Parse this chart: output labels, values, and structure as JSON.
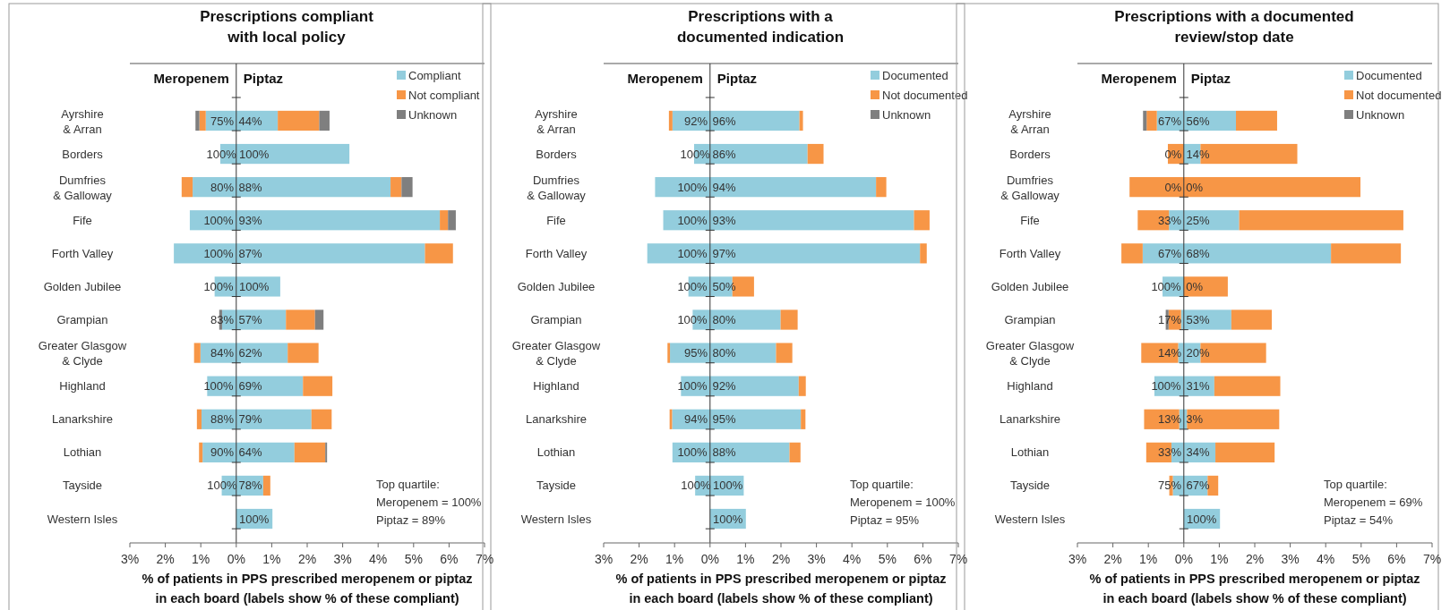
{
  "chart_data": [
    {
      "type": "bar",
      "orientation": "horizontal",
      "stacked": true,
      "title": "Prescriptions compliant\nwith local policy",
      "xlabel": "% of patients in PPS prescribed meropenem or piptaz\nin each board (labels show % of these compliant)",
      "legend": "top right",
      "categories": [
        "Ayrshire\n& Arran",
        "Borders",
        "Dumfries\n& Galloway",
        "Fife",
        "Forth Valley",
        "Golden Jubilee",
        "Grampian",
        "Greater Glasgow\n& Clyde",
        "Highland",
        "Lanarkshire",
        "Lothian",
        "Tayside",
        "Western Isles"
      ],
      "xlim": [
        -3,
        7
      ],
      "xticks": [
        {
          "value": -3,
          "label": "3%"
        },
        {
          "value": -2,
          "label": "2%"
        },
        {
          "value": -1,
          "label": "1%"
        },
        {
          "value": 0,
          "label": "0%"
        },
        {
          "value": 1,
          "label": "1%"
        },
        {
          "value": 2,
          "label": "2%"
        },
        {
          "value": 3,
          "label": "3%"
        },
        {
          "value": 4,
          "label": "4%"
        },
        {
          "value": 5,
          "label": "5%"
        },
        {
          "value": 6,
          "label": "6%"
        },
        {
          "value": 7,
          "label": "7%"
        }
      ],
      "annotations": [
        "Meropenem",
        "Piptaz",
        "Top quartile:\nMeropenem = 100%\nPiptaz = 89%",
        {
          "text": "75%",
          "x": -0.4,
          "y": "Ayrshire\n& Arran"
        },
        {
          "text": "100%",
          "x": -0.42,
          "y": "Borders"
        },
        {
          "text": "80%",
          "x": -0.4,
          "y": "Dumfries\n& Galloway"
        },
        {
          "text": "100%",
          "x": -0.5,
          "y": "Fife"
        },
        {
          "text": "100%",
          "x": -0.5,
          "y": "Forth Valley"
        },
        {
          "text": "100%",
          "x": -0.5,
          "y": "Golden Jubilee"
        },
        {
          "text": "83%",
          "x": -0.4,
          "y": "Grampian"
        },
        {
          "text": "84%",
          "x": -0.4,
          "y": "Greater Glasgow\n& Clyde"
        },
        {
          "text": "100%",
          "x": -0.5,
          "y": "Highland"
        },
        {
          "text": "88%",
          "x": -0.4,
          "y": "Lanarkshire"
        },
        {
          "text": "90%",
          "x": -0.4,
          "y": "Lothian"
        },
        {
          "text": "100%",
          "x": -0.4,
          "y": "Tayside"
        },
        {
          "text": "44%",
          "x": 0.4,
          "y": "Ayrshire\n& Arran"
        },
        {
          "text": "100%",
          "x": 0.5,
          "y": "Borders"
        },
        {
          "text": "88%",
          "x": 0.4,
          "y": "Dumfries\n& Galloway"
        },
        {
          "text": "93%",
          "x": 0.4,
          "y": "Fife"
        },
        {
          "text": "87%",
          "x": 0.4,
          "y": "Forth Valley"
        },
        {
          "text": "100%",
          "x": 0.5,
          "y": "Golden Jubilee"
        },
        {
          "text": "57%",
          "x": 0.4,
          "y": "Grampian"
        },
        {
          "text": "62%",
          "x": 0.4,
          "y": "Greater Glasgow\n& Clyde"
        },
        {
          "text": "69%",
          "x": 0.4,
          "y": "Highland"
        },
        {
          "text": "79%",
          "x": 0.4,
          "y": "Lanarkshire"
        },
        {
          "text": "64%",
          "x": 0.4,
          "y": "Lothian"
        },
        {
          "text": "78%",
          "x": 0.4,
          "y": "Tayside"
        },
        {
          "text": "100%",
          "x": 0.5,
          "y": "Western Isles"
        }
      ],
      "series": [
        {
          "color": "#93cddd",
          "values": [
            -0.86,
            -0.45,
            -1.23,
            -1.31,
            -1.76,
            -0.61,
            -0.4,
            -1.01,
            -0.82,
            -0.98,
            -0.95,
            -0.41,
            null
          ]
        },
        {
          "color": "#f79646",
          "values": [
            -0.18,
            null,
            -0.31,
            null,
            null,
            null,
            null,
            -0.18,
            null,
            -0.13,
            -0.1,
            null,
            null
          ]
        },
        {
          "color": "#7f7f7f",
          "values": [
            -0.11,
            null,
            null,
            null,
            null,
            null,
            -0.08,
            null,
            null,
            null,
            null,
            null,
            null
          ]
        },
        {
          "name": "Compliant",
          "color": "#93cddd",
          "values": [
            1.17,
            3.19,
            4.35,
            5.74,
            5.32,
            1.24,
            1.4,
            1.45,
            1.88,
            2.12,
            1.64,
            0.76,
            1.02
          ]
        },
        {
          "name": "Not compliant",
          "color": "#f79646",
          "values": [
            1.17,
            null,
            0.31,
            0.23,
            0.79,
            null,
            0.82,
            0.87,
            0.83,
            0.57,
            0.87,
            0.2,
            null
          ]
        },
        {
          "name": "Unknown",
          "color": "#7f7f7f",
          "values": [
            0.29,
            null,
            0.31,
            0.22,
            null,
            null,
            0.24,
            null,
            null,
            null,
            0.05,
            null,
            null
          ]
        }
      ]
    },
    {
      "type": "bar",
      "orientation": "horizontal",
      "stacked": true,
      "title": "Prescriptions with a\ndocumented indication",
      "xlabel": "% of patients in PPS prescribed meropenem or piptaz\nin each board (labels show % of these compliant)",
      "legend": "top right",
      "categories": [
        "Ayrshire\n& Arran",
        "Borders",
        "Dumfries\n& Galloway",
        "Fife",
        "Forth Valley",
        "Golden Jubilee",
        "Grampian",
        "Greater Glasgow\n& Clyde",
        "Highland",
        "Lanarkshire",
        "Lothian",
        "Tayside",
        "Western Isles"
      ],
      "xlim": [
        -3,
        7
      ],
      "xticks": [
        {
          "value": -3,
          "label": "3%"
        },
        {
          "value": -2,
          "label": "2%"
        },
        {
          "value": -1,
          "label": "1%"
        },
        {
          "value": 0,
          "label": "0%"
        },
        {
          "value": 1,
          "label": "1%"
        },
        {
          "value": 2,
          "label": "2%"
        },
        {
          "value": 3,
          "label": "3%"
        },
        {
          "value": 4,
          "label": "4%"
        },
        {
          "value": 5,
          "label": "5%"
        },
        {
          "value": 6,
          "label": "6%"
        },
        {
          "value": 7,
          "label": "7%"
        }
      ],
      "annotations": [
        "Meropenem",
        "Piptaz",
        "Top quartile:\nMeropenem = 100%\nPiptaz = 95%",
        {
          "text": "92%",
          "x": -0.4,
          "y": "Ayrshire\n& Arran"
        },
        {
          "text": "100%",
          "x": -0.42,
          "y": "Borders"
        },
        {
          "text": "100%",
          "x": -0.5,
          "y": "Dumfries\n& Galloway"
        },
        {
          "text": "100%",
          "x": -0.5,
          "y": "Fife"
        },
        {
          "text": "100%",
          "x": -0.5,
          "y": "Forth Valley"
        },
        {
          "text": "100%",
          "x": -0.5,
          "y": "Golden Jubilee"
        },
        {
          "text": "100%",
          "x": -0.5,
          "y": "Grampian"
        },
        {
          "text": "95%",
          "x": -0.4,
          "y": "Greater Glasgow\n& Clyde"
        },
        {
          "text": "100%",
          "x": -0.5,
          "y": "Highland"
        },
        {
          "text": "94%",
          "x": -0.4,
          "y": "Lanarkshire"
        },
        {
          "text": "100%",
          "x": -0.5,
          "y": "Lothian"
        },
        {
          "text": "100%",
          "x": -0.4,
          "y": "Tayside"
        },
        {
          "text": "96%",
          "x": 0.4,
          "y": "Ayrshire\n& Arran"
        },
        {
          "text": "86%",
          "x": 0.4,
          "y": "Borders"
        },
        {
          "text": "94%",
          "x": 0.4,
          "y": "Dumfries\n& Galloway"
        },
        {
          "text": "93%",
          "x": 0.4,
          "y": "Fife"
        },
        {
          "text": "97%",
          "x": 0.4,
          "y": "Forth Valley"
        },
        {
          "text": "50%",
          "x": 0.4,
          "y": "Golden Jubilee"
        },
        {
          "text": "80%",
          "x": 0.4,
          "y": "Grampian"
        },
        {
          "text": "80%",
          "x": 0.4,
          "y": "Greater Glasgow\n& Clyde"
        },
        {
          "text": "92%",
          "x": 0.4,
          "y": "Highland"
        },
        {
          "text": "95%",
          "x": 0.4,
          "y": "Lanarkshire"
        },
        {
          "text": "88%",
          "x": 0.4,
          "y": "Lothian"
        },
        {
          "text": "100%",
          "x": 0.5,
          "y": "Tayside"
        },
        {
          "text": "100%",
          "x": 0.5,
          "y": "Western Isles"
        }
      ],
      "series": [
        {
          "color": "#93cddd",
          "values": [
            -1.06,
            -0.45,
            -1.55,
            -1.32,
            -1.77,
            -0.61,
            -0.49,
            -1.13,
            -0.82,
            -1.07,
            -1.06,
            -0.42,
            null
          ]
        },
        {
          "color": "#f79646",
          "values": [
            -0.1,
            null,
            null,
            null,
            null,
            null,
            null,
            -0.07,
            null,
            -0.07,
            null,
            null,
            null
          ]
        },
        {
          "name": "Documented",
          "color": "#93cddd",
          "values": [
            2.52,
            2.75,
            4.68,
            5.75,
            5.92,
            0.63,
            1.99,
            1.86,
            2.5,
            2.56,
            2.24,
            0.95,
            1.01
          ]
        },
        {
          "name": "Not documented",
          "color": "#f79646",
          "values": [
            0.1,
            0.45,
            0.29,
            0.44,
            0.19,
            0.61,
            0.48,
            0.46,
            0.2,
            0.13,
            0.31,
            null,
            null
          ]
        },
        {
          "name": "Unknown",
          "color": "#7f7f7f",
          "values": [
            null,
            null,
            null,
            null,
            null,
            null,
            null,
            null,
            null,
            null,
            null,
            null,
            null
          ]
        }
      ]
    },
    {
      "type": "bar",
      "orientation": "horizontal",
      "stacked": true,
      "title": "Prescriptions with a documented\nreview/stop date",
      "xlabel": "% of patients in PPS prescribed meropenem or piptaz\nin each board (labels show % of these compliant)",
      "legend": "top right",
      "categories": [
        "Ayrshire\n& Arran",
        "Borders",
        "Dumfries\n& Galloway",
        "Fife",
        "Forth Valley",
        "Golden Jubilee",
        "Grampian",
        "Greater Glasgow\n& Clyde",
        "Highland",
        "Lanarkshire",
        "Lothian",
        "Tayside",
        "Western Isles"
      ],
      "xlim": [
        -3,
        7
      ],
      "xticks": [
        {
          "value": -3,
          "label": "3%"
        },
        {
          "value": -2,
          "label": "2%"
        },
        {
          "value": -1,
          "label": "1%"
        },
        {
          "value": 0,
          "label": "0%"
        },
        {
          "value": 1,
          "label": "1%"
        },
        {
          "value": 2,
          "label": "2%"
        },
        {
          "value": 3,
          "label": "3%"
        },
        {
          "value": 4,
          "label": "4%"
        },
        {
          "value": 5,
          "label": "5%"
        },
        {
          "value": 6,
          "label": "6%"
        },
        {
          "value": 7,
          "label": "7%"
        }
      ],
      "annotations": [
        "Meropenem",
        "Piptaz",
        "Top quartile:\nMeropenem = 69%\nPiptaz = 54%",
        {
          "text": "67%",
          "x": -0.4,
          "y": "Ayrshire\n& Arran"
        },
        {
          "text": "0%",
          "x": -0.3,
          "y": "Borders"
        },
        {
          "text": "0%",
          "x": -0.3,
          "y": "Dumfries\n& Galloway"
        },
        {
          "text": "33%",
          "x": -0.4,
          "y": "Fife"
        },
        {
          "text": "67%",
          "x": -0.4,
          "y": "Forth Valley"
        },
        {
          "text": "100%",
          "x": -0.5,
          "y": "Golden Jubilee"
        },
        {
          "text": "17%",
          "x": -0.4,
          "y": "Grampian"
        },
        {
          "text": "14%",
          "x": -0.4,
          "y": "Greater Glasgow\n& Clyde"
        },
        {
          "text": "100%",
          "x": -0.5,
          "y": "Highland"
        },
        {
          "text": "13%",
          "x": -0.4,
          "y": "Lanarkshire"
        },
        {
          "text": "33%",
          "x": -0.4,
          "y": "Lothian"
        },
        {
          "text": "75%",
          "x": -0.4,
          "y": "Tayside"
        },
        {
          "text": "56%",
          "x": 0.4,
          "y": "Ayrshire\n& Arran"
        },
        {
          "text": "14%",
          "x": 0.4,
          "y": "Borders"
        },
        {
          "text": "0%",
          "x": 0.3,
          "y": "Dumfries\n& Galloway"
        },
        {
          "text": "25%",
          "x": 0.4,
          "y": "Fife"
        },
        {
          "text": "68%",
          "x": 0.4,
          "y": "Forth Valley"
        },
        {
          "text": "0%",
          "x": 0.3,
          "y": "Golden Jubilee"
        },
        {
          "text": "53%",
          "x": 0.4,
          "y": "Grampian"
        },
        {
          "text": "20%",
          "x": 0.4,
          "y": "Greater Glasgow\n& Clyde"
        },
        {
          "text": "31%",
          "x": 0.4,
          "y": "Highland"
        },
        {
          "text": "3%",
          "x": 0.3,
          "y": "Lanarkshire"
        },
        {
          "text": "34%",
          "x": 0.4,
          "y": "Lothian"
        },
        {
          "text": "67%",
          "x": 0.4,
          "y": "Tayside"
        },
        {
          "text": "100%",
          "x": 0.5,
          "y": "Western Isles"
        }
      ],
      "series": [
        {
          "color": "#93cddd",
          "values": [
            -0.76,
            0,
            0,
            -0.42,
            -1.16,
            -0.6,
            -0.08,
            -0.16,
            -0.83,
            -0.13,
            -0.35,
            -0.31,
            null
          ]
        },
        {
          "color": "#f79646",
          "values": [
            -0.29,
            -0.45,
            -1.53,
            -0.88,
            -0.6,
            null,
            -0.35,
            -1.04,
            null,
            -0.99,
            -0.71,
            -0.1,
            null
          ]
        },
        {
          "color": "#7f7f7f",
          "values": [
            -0.1,
            null,
            null,
            null,
            null,
            null,
            -0.08,
            null,
            null,
            null,
            null,
            null,
            null
          ]
        },
        {
          "name": "Documented",
          "color": "#93cddd",
          "values": [
            1.47,
            0.47,
            0,
            1.56,
            4.15,
            0,
            1.34,
            0.47,
            0.86,
            0.09,
            0.89,
            0.67,
            1.02
          ]
        },
        {
          "name": "Not documented",
          "color": "#f79646",
          "values": [
            1.16,
            2.73,
            4.98,
            4.63,
            1.97,
            1.24,
            1.14,
            1.85,
            1.86,
            2.6,
            1.67,
            0.3,
            null
          ]
        },
        {
          "name": "Unknown",
          "color": "#7f7f7f",
          "values": [
            null,
            null,
            null,
            null,
            null,
            null,
            null,
            null,
            null,
            null,
            null,
            null,
            null
          ]
        }
      ]
    }
  ]
}
